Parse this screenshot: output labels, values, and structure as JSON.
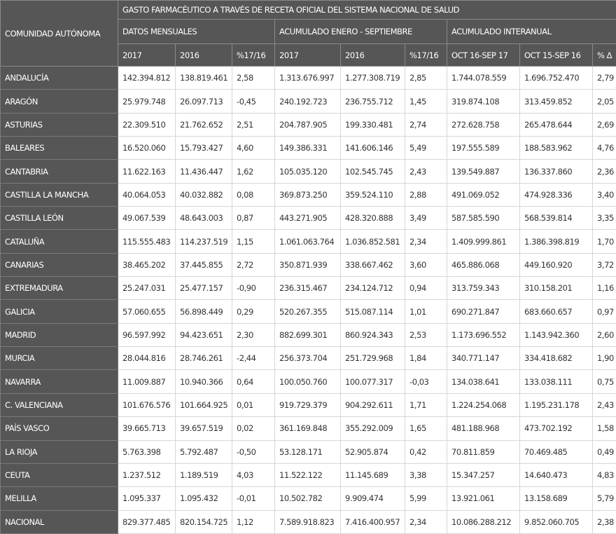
{
  "header": {
    "corner": "COMUNIDAD AUTÓNOMA",
    "title": "GASTO FARMACÉUTICO A TRAVÉS DE RECETA OFICIAL DEL SISTEMA NACIONAL DE SALUD",
    "groups": [
      "DATOS MENSUALES",
      "ACUMULADO ENERO - SEPTIEMBRE",
      "ACUMULADO INTERANUAL"
    ],
    "columns": [
      "2017",
      "2016",
      "%17/16",
      "2017",
      "2016",
      "%17/16",
      "OCT 16-SEP 17",
      "OCT 15-SEP 16",
      "% Δ"
    ]
  },
  "table": {
    "rows": [
      [
        "ANDALUCÍA",
        "142.394.812",
        "138.819.461",
        "2,58",
        "1.313.676.997",
        "1.277.308.719",
        "2,85",
        "1.744.078.559",
        "1.696.752.470",
        "2,79"
      ],
      [
        "ARAGÓN",
        "25.979.748",
        "26.097.713",
        "-0,45",
        "240.192.723",
        "236.755.712",
        "1,45",
        "319.874.108",
        "313.459.852",
        "2,05"
      ],
      [
        "ASTURIAS",
        "22.309.510",
        "21.762.652",
        "2,51",
        "204.787.905",
        "199.330.481",
        "2,74",
        "272.628.758",
        "265.478.644",
        "2,69"
      ],
      [
        "BALEARES",
        "16.520.060",
        "15.793.427",
        "4,60",
        "149.386.331",
        "141.606.146",
        "5,49",
        "197.555.589",
        "188.583.962",
        "4,76"
      ],
      [
        "CANTABRIA",
        "11.622.163",
        "11.436.447",
        "1,62",
        "105.035.120",
        "102.545.745",
        "2,43",
        "139.549.887",
        "136.337.860",
        "2,36"
      ],
      [
        "CASTILLA LA MANCHA",
        "40.064.053",
        "40.032.882",
        "0,08",
        "369.873.250",
        "359.524.110",
        "2,88",
        "491.069.052",
        "474.928.336",
        "3,40"
      ],
      [
        "CASTILLA LEÓN",
        "49.067.539",
        "48.643.003",
        "0,87",
        "443.271.905",
        "428.320.888",
        "3,49",
        "587.585.590",
        "568.539.814",
        "3,35"
      ],
      [
        "CATALUÑA",
        "115.555.483",
        "114.237.519",
        "1,15",
        "1.061.063.764",
        "1.036.852.581",
        "2,34",
        "1.409.999.861",
        "1.386.398.819",
        "1,70"
      ],
      [
        "CANARIAS",
        "38.465.202",
        "37.445.855",
        "2,72",
        "350.871.939",
        "338.667.462",
        "3,60",
        "465.886.068",
        "449.160.920",
        "3,72"
      ],
      [
        "EXTREMADURA",
        "25.247.031",
        "25.477.157",
        "-0,90",
        "236.315.467",
        "234.124.712",
        "0,94",
        "313.759.343",
        "310.158.201",
        "1,16"
      ],
      [
        "GALICIA",
        "57.060.655",
        "56.898.449",
        "0,29",
        "520.267.355",
        "515.087.114",
        "1,01",
        "690.271.847",
        "683.660.657",
        "0,97"
      ],
      [
        "MADRID",
        "96.597.992",
        "94.423.651",
        "2,30",
        "882.699.301",
        "860.924.343",
        "2,53",
        "1.173.696.552",
        "1.143.942.360",
        "2,60"
      ],
      [
        "MURCIA",
        "28.044.816",
        "28.746.261",
        "-2,44",
        "256.373.704",
        "251.729.968",
        "1,84",
        "340.771.147",
        "334.418.682",
        "1,90"
      ],
      [
        "NAVARRA",
        "11.009.887",
        "10.940.366",
        "0,64",
        "100.050.760",
        "100.077.317",
        "-0,03",
        "134.038.641",
        "133.038.111",
        "0,75"
      ],
      [
        "C. VALENCIANA",
        "101.676.576",
        "101.664.925",
        "0,01",
        "919.729.379",
        "904.292.611",
        "1,71",
        "1.224.254.068",
        "1.195.231.178",
        "2,43"
      ],
      [
        "PAÍS VASCO",
        "39.665.713",
        "39.657.519",
        "0,02",
        "361.169.848",
        "355.292.009",
        "1,65",
        "481.188.968",
        "473.702.192",
        "1,58"
      ],
      [
        "LA RIOJA",
        "5.763.398",
        "5.792.487",
        "-0,50",
        "53.128.171",
        "52.905.874",
        "0,42",
        "70.811.859",
        "70.469.485",
        "0,49"
      ],
      [
        "CEUTA",
        "1.237.512",
        "1.189.519",
        "4,03",
        "11.522.122",
        "11.145.689",
        "3,38",
        "15.347.257",
        "14.640.473",
        "4,83"
      ],
      [
        "MELILLA",
        "1.095.337",
        "1.095.432",
        "-0,01",
        "10.502.782",
        "9.909.474",
        "5,99",
        "13.921.061",
        "13.158.689",
        "5,79"
      ],
      [
        "NACIONAL",
        "829.377.485",
        "820.154.725",
        "1,12",
        "7.589.918.823",
        "7.416.400.957",
        "2,34",
        "10.086.288.212",
        "9.852.060.705",
        "2,38"
      ]
    ]
  }
}
